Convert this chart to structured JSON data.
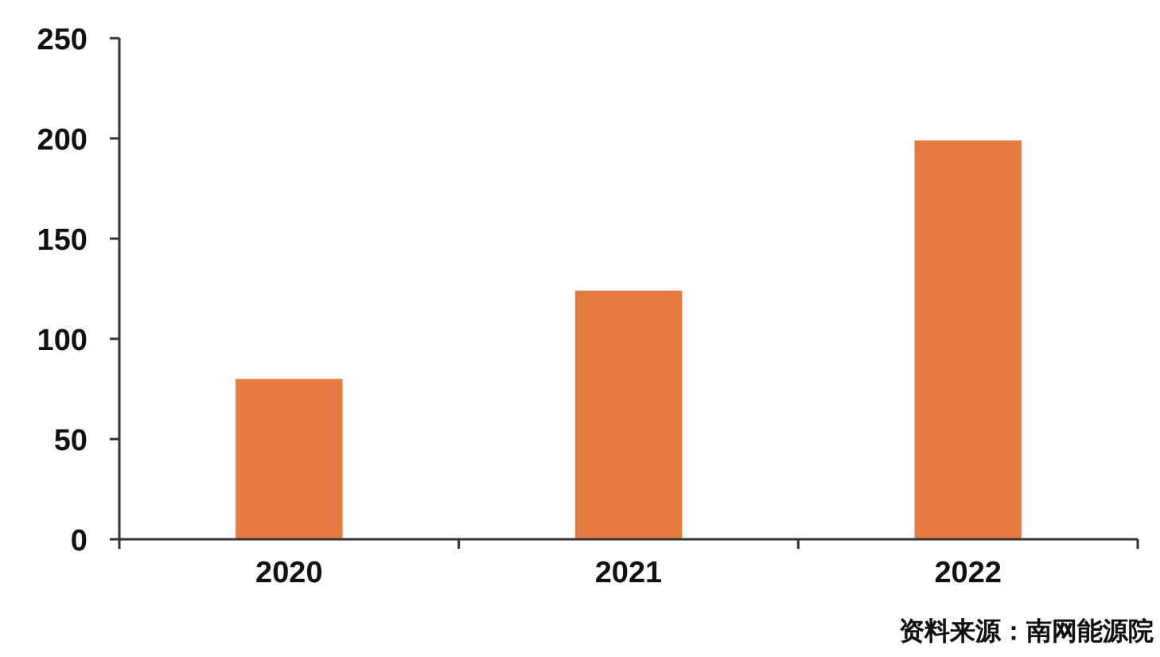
{
  "chart_data": {
    "type": "bar",
    "categories": [
      "2020",
      "2021",
      "2022"
    ],
    "values": [
      80,
      124,
      199
    ],
    "color": "#e67b42",
    "ylim": [
      0,
      250
    ],
    "yticks": [
      0,
      50,
      100,
      150,
      200,
      250
    ],
    "grid": false,
    "annotations": [
      "资料来源：南网能源院"
    ]
  }
}
